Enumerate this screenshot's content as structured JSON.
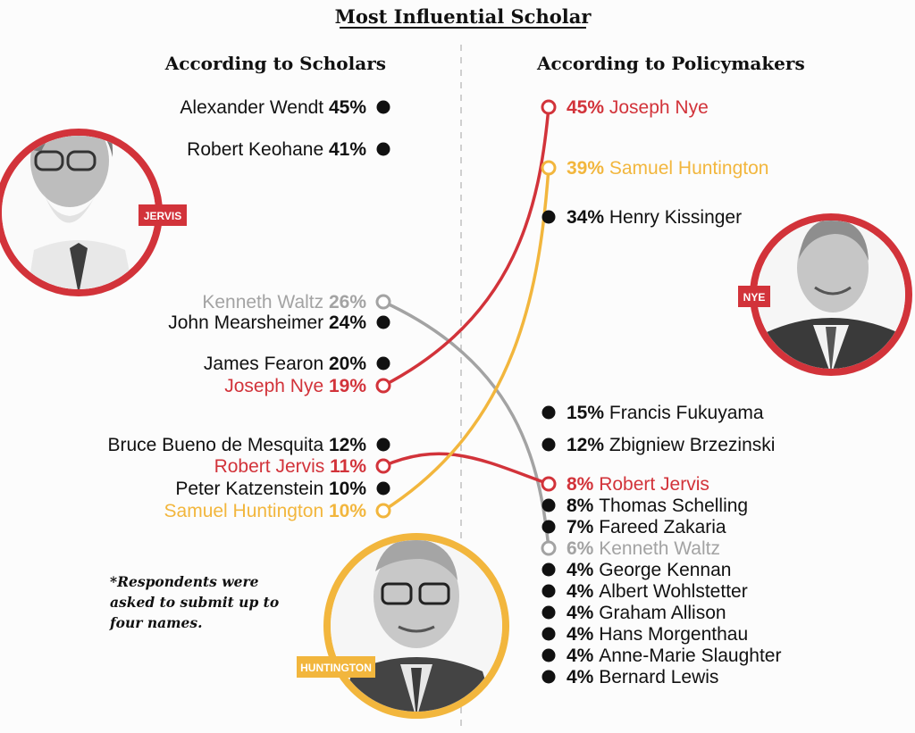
{
  "colors": {
    "default": "#111111",
    "red": "#d2333a",
    "gold": "#f2b63d",
    "gray": "#a3a3a3"
  },
  "chart_data": {
    "type": "slope",
    "title": "Most Influential Scholar",
    "left_heading": "According to Scholars",
    "right_heading": "According to Policymakers",
    "note": [
      "*Respondents were",
      "asked to submit up to",
      "four names."
    ],
    "scholars": [
      {
        "name": "Alexander Wendt",
        "pct": "45%",
        "value": 45,
        "color": "default"
      },
      {
        "name": "Robert Keohane",
        "pct": "41%",
        "value": 41,
        "color": "default"
      },
      {
        "name": "Kenneth Waltz",
        "pct": "26%",
        "value": 26,
        "color": "gray"
      },
      {
        "name": "John Mearsheimer",
        "pct": "24%",
        "value": 24,
        "color": "default"
      },
      {
        "name": "James Fearon",
        "pct": "20%",
        "value": 20,
        "color": "default"
      },
      {
        "name": "Joseph Nye",
        "pct": "19%",
        "value": 19,
        "color": "red"
      },
      {
        "name": "Bruce Bueno de Mesquita",
        "pct": "12%",
        "value": 12,
        "color": "default"
      },
      {
        "name": "Robert Jervis",
        "pct": "11%",
        "value": 11,
        "color": "red"
      },
      {
        "name": "Peter Katzenstein",
        "pct": "10%",
        "value": 10,
        "color": "default"
      },
      {
        "name": "Samuel Huntington",
        "pct": "10%",
        "value": 10,
        "color": "gold"
      }
    ],
    "policymakers": [
      {
        "name": "Joseph Nye",
        "pct": "45%",
        "value": 45,
        "color": "red"
      },
      {
        "name": "Samuel Huntington",
        "pct": "39%",
        "value": 39,
        "color": "gold"
      },
      {
        "name": "Henry Kissinger",
        "pct": "34%",
        "value": 34,
        "color": "default"
      },
      {
        "name": "Francis Fukuyama",
        "pct": "15%",
        "value": 15,
        "color": "default"
      },
      {
        "name": "Zbigniew Brzezinski",
        "pct": "12%",
        "value": 12,
        "color": "default"
      },
      {
        "name": "Robert Jervis",
        "pct": "8%",
        "value": 8,
        "color": "red"
      },
      {
        "name": "Thomas Schelling",
        "pct": "8%",
        "value": 8,
        "color": "default"
      },
      {
        "name": "Fareed Zakaria",
        "pct": "7%",
        "value": 7,
        "color": "default"
      },
      {
        "name": "Kenneth Waltz",
        "pct": "6%",
        "value": 6,
        "color": "gray"
      },
      {
        "name": "George Kennan",
        "pct": "4%",
        "value": 4,
        "color": "default"
      },
      {
        "name": "Albert Wohlstetter",
        "pct": "4%",
        "value": 4,
        "color": "default"
      },
      {
        "name": "Graham Allison",
        "pct": "4%",
        "value": 4,
        "color": "default"
      },
      {
        "name": "Hans Morgenthau",
        "pct": "4%",
        "value": 4,
        "color": "default"
      },
      {
        "name": "Anne-Marie Slaughter",
        "pct": "4%",
        "value": 4,
        "color": "default"
      },
      {
        "name": "Bernard Lewis",
        "pct": "4%",
        "value": 4,
        "color": "default"
      }
    ],
    "connections": [
      {
        "from": "Kenneth Waltz",
        "to": "Kenneth Waltz",
        "color": "gray"
      },
      {
        "from": "Joseph Nye",
        "to": "Joseph Nye",
        "color": "red"
      },
      {
        "from": "Robert Jervis",
        "to": "Robert Jervis",
        "color": "red"
      },
      {
        "from": "Samuel Huntington",
        "to": "Samuel Huntington",
        "color": "gold"
      }
    ],
    "portraits": [
      {
        "label": "JERVIS",
        "color": "red"
      },
      {
        "label": "NYE",
        "color": "red"
      },
      {
        "label": "HUNTINGTON",
        "color": "gold"
      }
    ]
  }
}
